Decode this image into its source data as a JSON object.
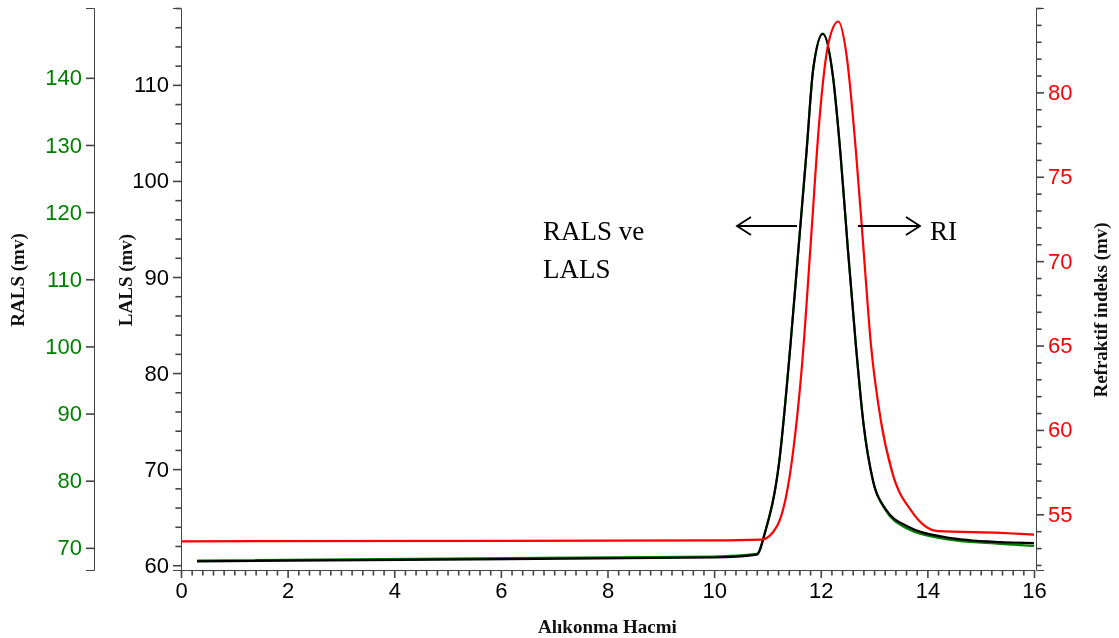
{
  "chart_data": {
    "type": "line",
    "xlabel": "Alıkonma Hacmi",
    "ylabel": "LALS (mv)",
    "y2label": "Refraktif indeks (mv)",
    "y3label": "RALS (mv)",
    "xlim": [
      0,
      16
    ],
    "xticks": [
      0,
      {
        "value": 0.2,
        "label": null
      },
      {
        "value": 0.4,
        "label": null
      },
      {
        "value": 0.6,
        "label": null
      },
      {
        "value": 0.8,
        "label": null
      },
      {
        "value": 1,
        "label": null
      },
      {
        "value": 1.2,
        "label": null
      },
      {
        "value": 1.4,
        "label": null
      },
      {
        "value": 1.6,
        "label": null
      },
      {
        "value": 1.8,
        "label": null
      },
      2,
      {
        "value": 2.2,
        "label": null
      },
      {
        "value": 2.4,
        "label": null
      },
      {
        "value": 2.6,
        "label": null
      },
      {
        "value": 2.8,
        "label": null
      },
      {
        "value": 3,
        "label": null
      },
      {
        "value": 3.2,
        "label": null
      },
      {
        "value": 3.4,
        "label": null
      },
      {
        "value": 3.6,
        "label": null
      },
      {
        "value": 3.8,
        "label": null
      },
      4,
      {
        "value": 4.2,
        "label": null
      },
      {
        "value": 4.4,
        "label": null
      },
      {
        "value": 4.6,
        "label": null
      },
      {
        "value": 4.8,
        "label": null
      },
      {
        "value": 5,
        "label": null
      },
      {
        "value": 5.2,
        "label": null
      },
      {
        "value": 5.4,
        "label": null
      },
      {
        "value": 5.6,
        "label": null
      },
      {
        "value": 5.8,
        "label": null
      },
      6,
      {
        "value": 6.2,
        "label": null
      },
      {
        "value": 6.4,
        "label": null
      },
      {
        "value": 6.6,
        "label": null
      },
      {
        "value": 6.8,
        "label": null
      },
      {
        "value": 7,
        "label": null
      },
      {
        "value": 7.2,
        "label": null
      },
      {
        "value": 7.4,
        "label": null
      },
      {
        "value": 7.6,
        "label": null
      },
      {
        "value": 7.8,
        "label": null
      },
      8,
      {
        "value": 8.2,
        "label": null
      },
      {
        "value": 8.4,
        "label": null
      },
      {
        "value": 8.6,
        "label": null
      },
      {
        "value": 8.8,
        "label": null
      },
      {
        "value": 9,
        "label": null
      },
      {
        "value": 9.2,
        "label": null
      },
      {
        "value": 9.4,
        "label": null
      },
      {
        "value": 9.6,
        "label": null
      },
      {
        "value": 9.8,
        "label": null
      },
      10,
      {
        "value": 10.2,
        "label": null
      },
      {
        "value": 10.4,
        "label": null
      },
      {
        "value": 10.6,
        "label": null
      },
      {
        "value": 10.8,
        "label": null
      },
      {
        "value": 11,
        "label": null
      },
      {
        "value": 11.2,
        "label": null
      },
      {
        "value": 11.4,
        "label": null
      },
      {
        "value": 11.6,
        "label": null
      },
      {
        "value": 11.8,
        "label": null
      },
      12,
      {
        "value": 12.2,
        "label": null
      },
      {
        "value": 12.4,
        "label": null
      },
      {
        "value": 12.6,
        "label": null
      },
      {
        "value": 12.8,
        "label": null
      },
      {
        "value": 13,
        "label": null
      },
      {
        "value": 13.2,
        "label": null
      },
      {
        "value": 13.4,
        "label": null
      },
      {
        "value": 13.6,
        "label": null
      },
      {
        "value": 13.8,
        "label": null
      },
      14,
      {
        "value": 14.2,
        "label": null
      },
      {
        "value": 14.4,
        "label": null
      },
      {
        "value": 14.6,
        "label": null
      },
      {
        "value": 14.8,
        "label": null
      },
      {
        "value": 15,
        "label": null
      },
      {
        "value": 15.2,
        "label": null
      },
      {
        "value": 15.4,
        "label": null
      },
      {
        "value": 15.6,
        "label": null
      },
      {
        "value": 15.8,
        "label": null
      },
      16
    ],
    "ylim": [
      59.5,
      118
    ],
    "yticks": [
      60,
      {
        "value": 62,
        "label": null
      },
      {
        "value": 64,
        "label": null
      },
      {
        "value": 66,
        "label": null
      },
      {
        "value": 68,
        "label": null
      },
      70,
      {
        "value": 72,
        "label": null
      },
      {
        "value": 74,
        "label": null
      },
      {
        "value": 76,
        "label": null
      },
      {
        "value": 78,
        "label": null
      },
      80,
      {
        "value": 82,
        "label": null
      },
      {
        "value": 84,
        "label": null
      },
      {
        "value": 86,
        "label": null
      },
      {
        "value": 88,
        "label": null
      },
      90,
      {
        "value": 92,
        "label": null
      },
      {
        "value": 94,
        "label": null
      },
      {
        "value": 96,
        "label": null
      },
      {
        "value": 98,
        "label": null
      },
      100,
      {
        "value": 102,
        "label": null
      },
      {
        "value": 104,
        "label": null
      },
      {
        "value": 106,
        "label": null
      },
      {
        "value": 108,
        "label": null
      },
      110,
      {
        "value": 112,
        "label": null
      },
      {
        "value": 114,
        "label": null
      },
      {
        "value": 116,
        "label": null
      },
      {
        "value": 118,
        "label": null
      }
    ],
    "y2lim": [
      51.7,
      85
    ],
    "y2ticks": [
      {
        "value": 52,
        "label": null
      },
      {
        "value": 53,
        "label": null
      },
      {
        "value": 54,
        "label": null
      },
      55,
      {
        "value": 56,
        "label": null
      },
      {
        "value": 57,
        "label": null
      },
      {
        "value": 58,
        "label": null
      },
      {
        "value": 59,
        "label": null
      },
      60,
      {
        "value": 61,
        "label": null
      },
      {
        "value": 62,
        "label": null
      },
      {
        "value": 63,
        "label": null
      },
      {
        "value": 64,
        "label": null
      },
      65,
      {
        "value": 66,
        "label": null
      },
      {
        "value": 67,
        "label": null
      },
      {
        "value": 68,
        "label": null
      },
      {
        "value": 69,
        "label": null
      },
      70,
      {
        "value": 71,
        "label": null
      },
      {
        "value": 72,
        "label": null
      },
      {
        "value": 73,
        "label": null
      },
      {
        "value": 74,
        "label": null
      },
      75,
      {
        "value": 76,
        "label": null
      },
      {
        "value": 77,
        "label": null
      },
      {
        "value": 78,
        "label": null
      },
      {
        "value": 79,
        "label": null
      },
      80,
      {
        "value": 81,
        "label": null
      },
      {
        "value": 82,
        "label": null
      },
      {
        "value": 83,
        "label": null
      },
      {
        "value": 84,
        "label": null
      },
      {
        "value": 85,
        "label": null
      }
    ],
    "y3lim": [
      66.7,
      150.4
    ],
    "y3ticks": [
      70,
      80,
      90,
      100,
      110,
      120,
      130,
      140
    ],
    "marker": "none",
    "line_style": "solid",
    "annotations": [
      "RALS ve LALS",
      "RI"
    ],
    "series": [
      {
        "color": "#008000",
        "axis": "y3",
        "x": [
          0.3,
          10,
          10.8,
          10.96,
          11.22,
          11.43,
          11.58,
          11.73,
          11.86,
          12.04,
          12.23,
          12.37,
          12.51,
          12.66,
          12.8,
          12.98,
          13.21,
          13.64,
          14.35,
          15.37,
          16
        ],
        "values": [
          68.1,
          68.7,
          69.1,
          72.5,
          82.8,
          100.1,
          114.4,
          128.7,
          141.4,
          146.6,
          140.2,
          128.7,
          114.4,
          100.1,
          88.6,
          80.0,
          75.7,
          72.8,
          71.3,
          70.6,
          70.3
        ]
      },
      {
        "color": "#000000",
        "axis": "y",
        "x": [
          0.3,
          10,
          10.8,
          10.96,
          11.22,
          11.43,
          11.58,
          11.73,
          11.86,
          12.04,
          12.23,
          12.37,
          12.51,
          12.66,
          12.8,
          12.98,
          13.21,
          13.64,
          14.35,
          15.37,
          16
        ],
        "values": [
          60.4,
          60.8,
          61.1,
          63.5,
          70.7,
          82.8,
          92.8,
          102.8,
          111.7,
          115.3,
          110.8,
          102.8,
          92.8,
          82.8,
          74.8,
          68.8,
          65.9,
          64.0,
          62.9,
          62.4,
          62.3
        ]
      },
      {
        "color": "#ff0000",
        "axis": "y2",
        "x": [
          0,
          10,
          10.89,
          11.18,
          11.46,
          11.65,
          11.83,
          11.97,
          12.15,
          12.33,
          12.48,
          12.66,
          12.8,
          12.94,
          13.13,
          13.34,
          13.7,
          14.2,
          15.37,
          16
        ],
        "values": [
          53.4,
          53.45,
          53.5,
          54.3,
          58.2,
          63.9,
          71.9,
          78.2,
          83.0,
          84.2,
          82.3,
          76.5,
          70.8,
          65.1,
          60.5,
          57.5,
          55.2,
          54.0,
          53.9,
          53.8
        ]
      }
    ]
  }
}
